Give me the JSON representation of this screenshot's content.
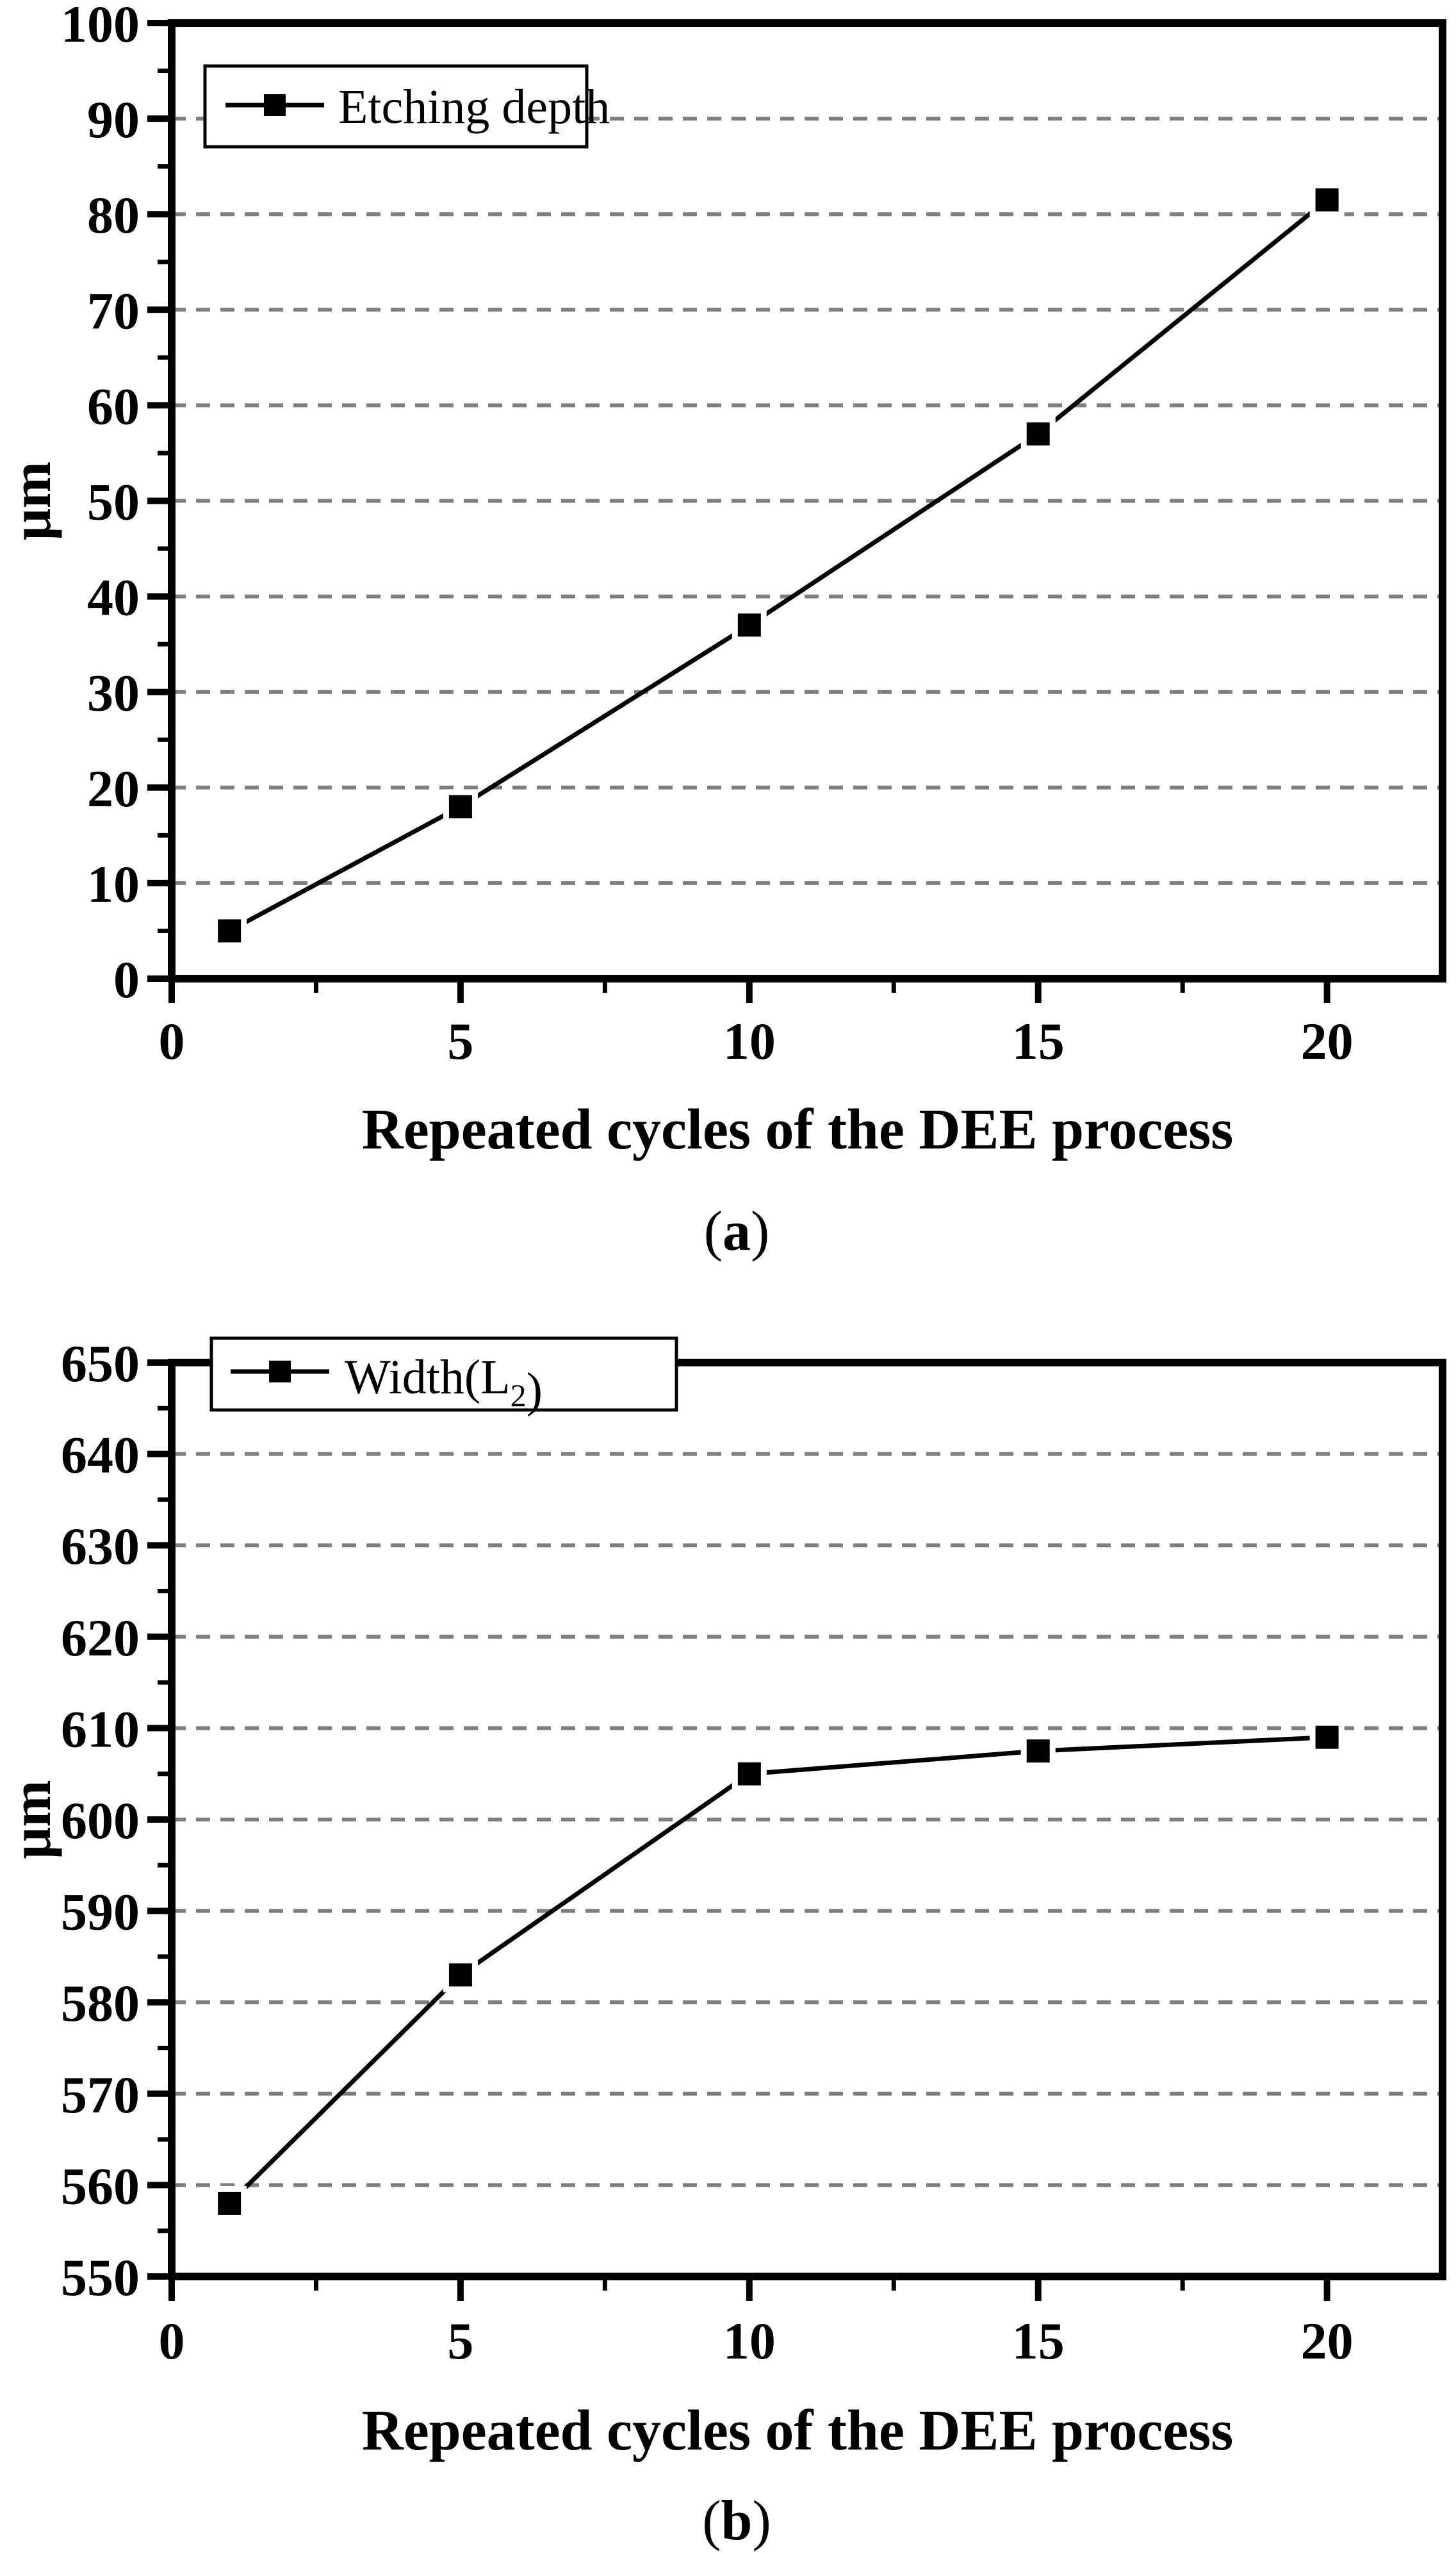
{
  "figure": {
    "background": "#ffffff",
    "ink_color": "#000000",
    "grid_color": "#7f7f7f"
  },
  "chart_data": [
    {
      "type": "line",
      "title": "",
      "caption": {
        "open": "(",
        "letter": "a",
        "close": ")"
      },
      "xlabel": "Repeated cycles of the DEE process",
      "ylabel": "μm",
      "legend_position": "top-left",
      "legend_parts": [
        {
          "text": "Etching depth",
          "sub": false
        }
      ],
      "marker": "filled-square",
      "line_color": "#000000",
      "grid": "horizontal-dashed",
      "grid_color": "#7f7f7f",
      "xlim": [
        0,
        22
      ],
      "ylim": [
        0,
        100
      ],
      "series": [
        {
          "name": "Etching depth",
          "x": [
            1,
            5,
            10,
            15,
            20
          ],
          "y": [
            5,
            18,
            37,
            57,
            81.5
          ]
        }
      ],
      "xtick_values": [
        0,
        5,
        10,
        15,
        20
      ],
      "xtick_labels": [
        "0",
        "5",
        "10",
        "15",
        "20"
      ],
      "xticks_minor": [
        2.5,
        7.5,
        12.5,
        17.5
      ],
      "ytick_values": [
        0,
        10,
        20,
        30,
        40,
        50,
        60,
        70,
        80,
        90,
        100
      ],
      "ytick_labels": [
        "0",
        "10",
        "20",
        "30",
        "40",
        "50",
        "60",
        "70",
        "80",
        "90",
        "100"
      ],
      "yticks_minor": [
        5,
        15,
        25,
        35,
        45,
        55,
        65,
        75,
        85,
        95
      ],
      "grid_y": [
        10,
        20,
        30,
        40,
        50,
        60,
        70,
        80,
        90
      ]
    },
    {
      "type": "line",
      "title": "",
      "caption": {
        "open": "(",
        "letter": "b",
        "close": ")"
      },
      "xlabel": "Repeated cycles of the DEE process",
      "ylabel": "μm",
      "legend_position": "top-left",
      "legend_parts": [
        {
          "text": "Width(L",
          "sub": false
        },
        {
          "text": "2",
          "sub": true
        },
        {
          "text": ")",
          "sub": false
        }
      ],
      "marker": "filled-square",
      "line_color": "#000000",
      "grid": "horizontal-dashed",
      "grid_color": "#7f7f7f",
      "xlim": [
        0,
        22
      ],
      "ylim": [
        550,
        650
      ],
      "series": [
        {
          "name": "Width(L2)",
          "x": [
            1,
            5,
            10,
            15,
            20
          ],
          "y": [
            558,
            583,
            605,
            607.5,
            609
          ]
        }
      ],
      "xtick_values": [
        0,
        5,
        10,
        15,
        20
      ],
      "xtick_labels": [
        "0",
        "5",
        "10",
        "15",
        "20"
      ],
      "xticks_minor": [
        2.5,
        7.5,
        12.5,
        17.5
      ],
      "ytick_values": [
        550,
        560,
        570,
        580,
        590,
        600,
        610,
        620,
        630,
        640,
        650
      ],
      "ytick_labels": [
        "550",
        "560",
        "570",
        "580",
        "590",
        "600",
        "610",
        "620",
        "630",
        "640",
        "650"
      ],
      "yticks_minor": [
        555,
        565,
        575,
        585,
        595,
        605,
        615,
        625,
        635,
        645
      ],
      "grid_y": [
        560,
        570,
        580,
        590,
        600,
        610,
        620,
        630,
        640
      ]
    }
  ]
}
